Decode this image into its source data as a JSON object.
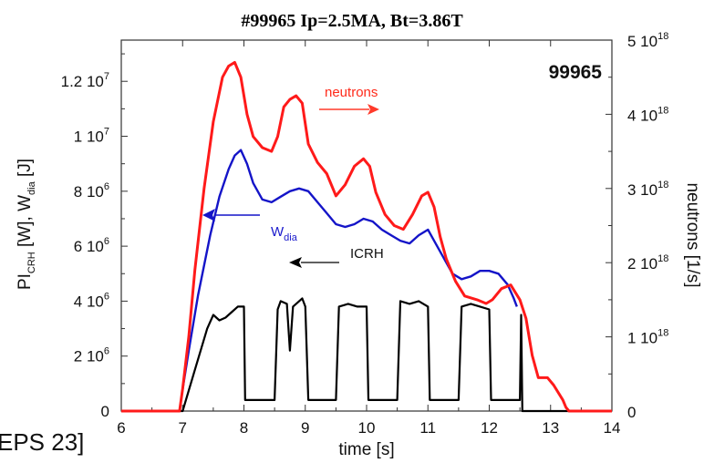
{
  "chart_data": {
    "type": "line",
    "title": "#99965 Ip=2.5MA, Bt=3.86T",
    "shot_label": "99965",
    "corner_text": "EPS 23]",
    "xlabel": "time [s]",
    "xlim": [
      6,
      14
    ],
    "x_ticks": [
      "6",
      "7",
      "8",
      "9",
      "10",
      "11",
      "12",
      "13",
      "14"
    ],
    "ylabel_left": {
      "pre": "PI",
      "pre_sub": "CRH",
      "mid": " [W], W",
      "mid_sub": "dia",
      "post": " [J]"
    },
    "ylim_left": [
      0,
      13500000
    ],
    "y_ticks_left": [
      {
        "mant": "0",
        "exp": "",
        "value": 0
      },
      {
        "mant": "2 10",
        "exp": "6",
        "value": 2000000
      },
      {
        "mant": "4 10",
        "exp": "6",
        "value": 4000000
      },
      {
        "mant": "6 10",
        "exp": "6",
        "value": 6000000
      },
      {
        "mant": "8 10",
        "exp": "6",
        "value": 8000000
      },
      {
        "mant": "1 10",
        "exp": "7",
        "value": 10000000
      },
      {
        "mant": "1.2 10",
        "exp": "7",
        "value": 12000000
      }
    ],
    "ylabel_right": "neutrons [1/s]",
    "ylim_right": [
      0,
      5000000000000000000
    ],
    "y_ticks_right": [
      {
        "mant": "0",
        "exp": "",
        "value": 0
      },
      {
        "mant": "1 10",
        "exp": "18",
        "value": 1000000000000000000
      },
      {
        "mant": "2 10",
        "exp": "18",
        "value": 2000000000000000000
      },
      {
        "mant": "3 10",
        "exp": "18",
        "value": 3000000000000000000
      },
      {
        "mant": "4 10",
        "exp": "18",
        "value": 4000000000000000000
      },
      {
        "mant": "5 10",
        "exp": "18",
        "value": 5000000000000000000
      }
    ],
    "annotations": [
      {
        "text": "neutrons",
        "color": "#ff2a1a"
      },
      {
        "text": "W",
        "sub": "dia",
        "color": "#1a1acc"
      },
      {
        "text": "ICRH",
        "color": "#000000"
      }
    ],
    "series": [
      {
        "name": "neutrons",
        "axis": "right",
        "color": "#ff1a1a",
        "x": [
          6.0,
          6.95,
          7.0,
          7.1,
          7.2,
          7.35,
          7.5,
          7.65,
          7.75,
          7.85,
          7.95,
          8.05,
          8.15,
          8.3,
          8.45,
          8.55,
          8.65,
          8.75,
          8.85,
          8.95,
          9.05,
          9.2,
          9.35,
          9.5,
          9.65,
          9.8,
          9.95,
          10.05,
          10.15,
          10.3,
          10.45,
          10.6,
          10.75,
          10.9,
          11.0,
          11.1,
          11.2,
          11.3,
          11.45,
          11.6,
          11.8,
          11.95,
          12.05,
          12.2,
          12.35,
          12.5,
          12.6,
          12.7,
          12.8,
          12.95,
          13.05,
          13.2,
          13.25,
          13.3,
          14.0
        ],
        "y": [
          0,
          0,
          3e+17,
          1e+18,
          1.9e+18,
          3e+18,
          3.9e+18,
          4.5e+18,
          4.65e+18,
          4.7e+18,
          4.5e+18,
          4e+18,
          3.7e+18,
          3.55e+18,
          3.5e+18,
          3.7e+18,
          4.1e+18,
          4.2e+18,
          4.25e+18,
          4.15e+18,
          3.6e+18,
          3.35e+18,
          3.2e+18,
          2.9e+18,
          3.05e+18,
          3.3e+18,
          3.4e+18,
          3.3e+18,
          2.95e+18,
          2.65e+18,
          2.5e+18,
          2.45e+18,
          2.65e+18,
          2.9e+18,
          2.95e+18,
          2.75e+18,
          2.35e+18,
          2.05e+18,
          1.75e+18,
          1.55e+18,
          1.5e+18,
          1.45e+18,
          1.5e+18,
          1.65e+18,
          1.7e+18,
          1.5e+18,
          1.25e+18,
          7.5e+17,
          4.5e+17,
          4.5e+17,
          3.5e+17,
          1.5e+17,
          5e+16,
          0,
          0
        ]
      },
      {
        "name": "Wdia",
        "axis": "left",
        "color": "#1414c8",
        "x": [
          7.0,
          7.1,
          7.25,
          7.45,
          7.6,
          7.75,
          7.85,
          7.95,
          8.05,
          8.15,
          8.3,
          8.45,
          8.6,
          8.75,
          8.9,
          9.05,
          9.2,
          9.35,
          9.5,
          9.65,
          9.8,
          9.95,
          10.1,
          10.25,
          10.4,
          10.55,
          10.7,
          10.85,
          11.0,
          11.1,
          11.25,
          11.4,
          11.55,
          11.7,
          11.85,
          12.0,
          12.15,
          12.3,
          12.4,
          12.45
        ],
        "y": [
          800000,
          2200000,
          4200000,
          6400000,
          7800000,
          8800000,
          9300000,
          9500000,
          9000000,
          8300000,
          7700000,
          7600000,
          7800000,
          8000000,
          8100000,
          8000000,
          7600000,
          7200000,
          6800000,
          6700000,
          6800000,
          7000000,
          6900000,
          6600000,
          6400000,
          6200000,
          6100000,
          6400000,
          6600000,
          6200000,
          5600000,
          5000000,
          4800000,
          4900000,
          5100000,
          5100000,
          5000000,
          4600000,
          4100000,
          3800000
        ]
      },
      {
        "name": "ICRH",
        "axis": "left",
        "color": "#000000",
        "x": [
          6.0,
          7.0,
          7.2,
          7.4,
          7.5,
          7.6,
          7.7,
          7.8,
          7.9,
          8.0,
          8.02,
          8.5,
          8.55,
          8.6,
          8.7,
          8.75,
          8.8,
          8.85,
          8.95,
          9.0,
          9.05,
          9.5,
          9.55,
          9.7,
          9.85,
          10.0,
          10.03,
          10.5,
          10.55,
          10.7,
          10.85,
          11.0,
          11.03,
          11.5,
          11.55,
          11.7,
          11.85,
          12.0,
          12.03,
          12.5,
          12.52,
          12.54,
          14.0
        ],
        "y": [
          0,
          0,
          1500000,
          3000000,
          3500000,
          3300000,
          3400000,
          3600000,
          3800000,
          3800000,
          400000,
          400000,
          3700000,
          4000000,
          3900000,
          2200000,
          3800000,
          3900000,
          4100000,
          3800000,
          400000,
          400000,
          3800000,
          3900000,
          3800000,
          3800000,
          400000,
          400000,
          4000000,
          3900000,
          4000000,
          3800000,
          400000,
          400000,
          3800000,
          3900000,
          3800000,
          3700000,
          400000,
          400000,
          3500000,
          0,
          0
        ]
      }
    ]
  }
}
